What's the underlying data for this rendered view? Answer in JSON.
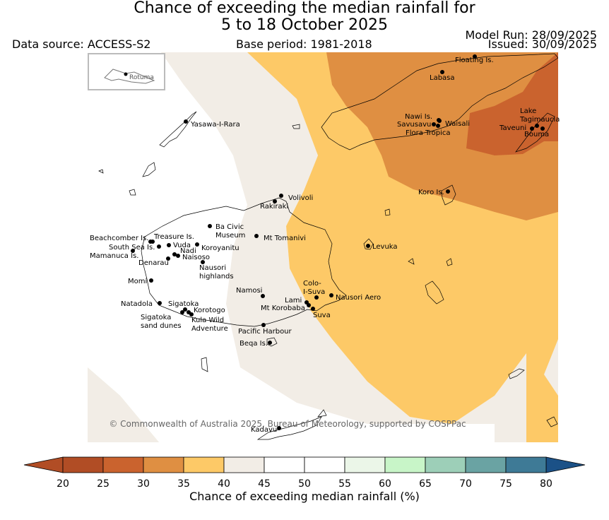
{
  "header": {
    "title_line1": "Chance of exceeding the median rainfall for",
    "title_line2": "5 to 18 October 2025",
    "data_source": "Data source: ACCESS-S2",
    "base_period": "Base period: 1981-2018",
    "model_run": "Model Run: 28/09/2025",
    "issued": "Issued: 30/09/2025"
  },
  "map": {
    "inset_label": "Rotuma",
    "copyright": "© Commonwealth of Australia 2025, Bureau of Meteorology, supported by COSPPac",
    "places": [
      {
        "name": "Floating Is.",
        "lon": 672,
        "lat": 80
      },
      {
        "name": "Labasa",
        "lon": 626,
        "lat": 102
      },
      {
        "name": "Nawi Is.",
        "lon": 621,
        "lat": 170
      },
      {
        "name": "Savusavu",
        "lon": 614,
        "lat": 176
      },
      {
        "name": "Waisali",
        "lon": 622,
        "lat": 171
      },
      {
        "name": "Flora Tropica",
        "lon": 620,
        "lat": 178
      },
      {
        "name": "Lake Tagimaucia",
        "lon": 760,
        "lat": 178
      },
      {
        "name": "Taveuni",
        "lon": 753,
        "lat": 182
      },
      {
        "name": "Bouma",
        "lon": 768,
        "lat": 182
      },
      {
        "name": "Yasawa-I-Rara",
        "lon": 263,
        "lat": 172
      },
      {
        "name": "Koro Is.",
        "lon": 634,
        "lat": 271
      },
      {
        "name": "Volivoli",
        "lon": 398,
        "lat": 277
      },
      {
        "name": "Rakiraki",
        "lon": 389,
        "lat": 285
      },
      {
        "name": "Ba Civic Museum",
        "lon": 297,
        "lat": 320
      },
      {
        "name": "Mt Tomanivi",
        "lon": 363,
        "lat": 334
      },
      {
        "name": "Levuka",
        "lon": 521,
        "lat": 348
      },
      {
        "name": "Beachcomber Is.",
        "lon": 213,
        "lat": 342
      },
      {
        "name": "Treasure Is.",
        "lon": 216,
        "lat": 342
      },
      {
        "name": "South Sea Is.",
        "lon": 225,
        "lat": 349
      },
      {
        "name": "Vuda",
        "lon": 239,
        "lat": 347
      },
      {
        "name": "Koroyanitu",
        "lon": 279,
        "lat": 346
      },
      {
        "name": "Mamanuca Is.",
        "lon": 188,
        "lat": 355
      },
      {
        "name": "Nadi",
        "lon": 247,
        "lat": 360
      },
      {
        "name": "Naisoso",
        "lon": 252,
        "lat": 362
      },
      {
        "name": "Denarau",
        "lon": 238,
        "lat": 366
      },
      {
        "name": "Nausori highlands",
        "lon": 287,
        "lat": 371
      },
      {
        "name": "Momi",
        "lon": 214,
        "lat": 397
      },
      {
        "name": "Namosi",
        "lon": 372,
        "lat": 419
      },
      {
        "name": "Colo-I-Suva",
        "lon": 448,
        "lat": 421
      },
      {
        "name": "Nausori Aero",
        "lon": 469,
        "lat": 418
      },
      {
        "name": "Lami",
        "lon": 434,
        "lat": 428
      },
      {
        "name": "Mt Korobaba",
        "lon": 437,
        "lat": 432
      },
      {
        "name": "Suva",
        "lon": 443,
        "lat": 437
      },
      {
        "name": "Natadola",
        "lon": 226,
        "lat": 429
      },
      {
        "name": "Sigatoka",
        "lon": 262,
        "lat": 438
      },
      {
        "name": "Korotogo",
        "lon": 267,
        "lat": 442
      },
      {
        "name": "Sigatoka sand dunes",
        "lon": 258,
        "lat": 442
      },
      {
        "name": "Kula Wild Adventure",
        "lon": 271,
        "lat": 445
      },
      {
        "name": "Pacific Harbour",
        "lon": 373,
        "lat": 460
      },
      {
        "name": "Beqa Is.",
        "lon": 382,
        "lat": 485
      },
      {
        "name": "Kadavu",
        "lon": 395,
        "lat": 606
      }
    ]
  },
  "colorbar": {
    "label": "Chance of exceeding median rainfall (%)",
    "ticks": [
      "20",
      "25",
      "30",
      "35",
      "40",
      "45",
      "50",
      "55",
      "60",
      "65",
      "70",
      "75",
      "80"
    ],
    "colors": [
      "#b14d25",
      "#ca632e",
      "#df8f42",
      "#fdc967",
      "#f2ede6",
      "#ffffff",
      "#ffffff",
      "#ebf6e8",
      "#c8f5c8",
      "#9dcfb8",
      "#6aa3a3",
      "#3e7a96",
      "#1b5187"
    ]
  },
  "colors": {
    "cat_20_25": "#b14d25",
    "cat_25_30": "#ca632e",
    "cat_30_35": "#df8f42",
    "cat_35_40": "#fdc967",
    "cat_40_45": "#f2ede6",
    "cat_45_55": "#ffffff",
    "cat_55_60": "#ebf6e8"
  }
}
